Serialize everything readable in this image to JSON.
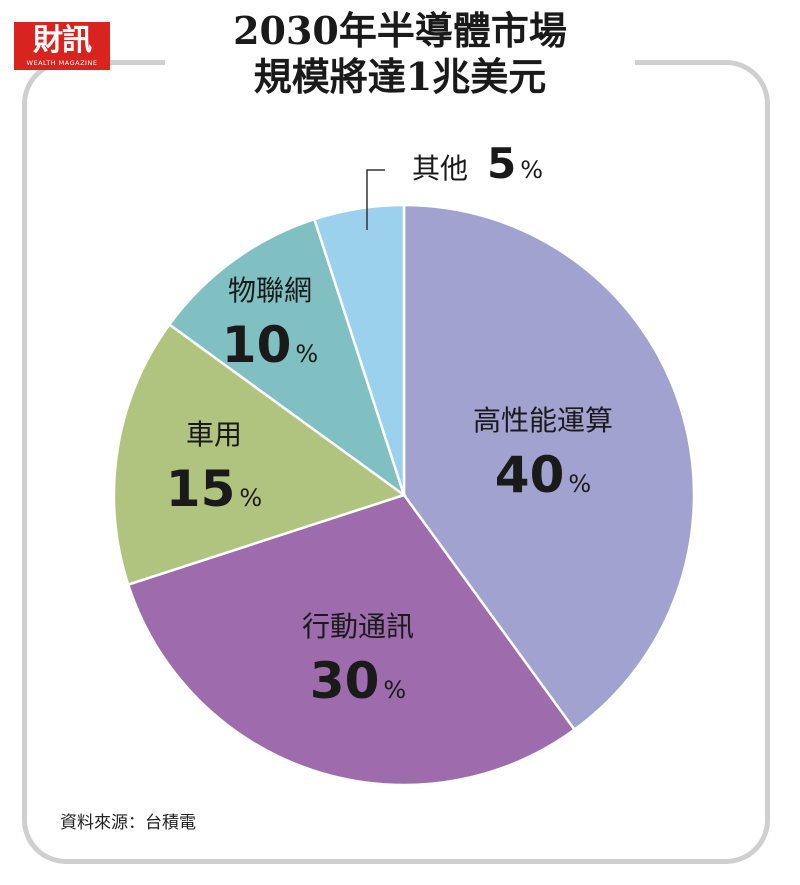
{
  "logo": {
    "main": "財訊",
    "sub": "WEALTH MAGAZINE"
  },
  "title_lines": [
    "2030年半導體市場",
    "規模將達1兆美元"
  ],
  "source": "資料來源：台積電",
  "chart_data": {
    "type": "pie",
    "title": "2030年半導體市場規模將達1兆美元",
    "unit": "%",
    "start": "12 o'clock, clockwise",
    "slices": [
      {
        "label": "高性能運算",
        "value": 40,
        "color": "#a1a2d0"
      },
      {
        "label": "行動通訊",
        "value": 30,
        "color": "#9e6bad"
      },
      {
        "label": "車用",
        "value": 15,
        "color": "#b1c47f"
      },
      {
        "label": "物聯網",
        "value": 10,
        "color": "#80c0c2"
      },
      {
        "label": "其他",
        "value": 5,
        "color": "#9bd1ec"
      }
    ]
  }
}
